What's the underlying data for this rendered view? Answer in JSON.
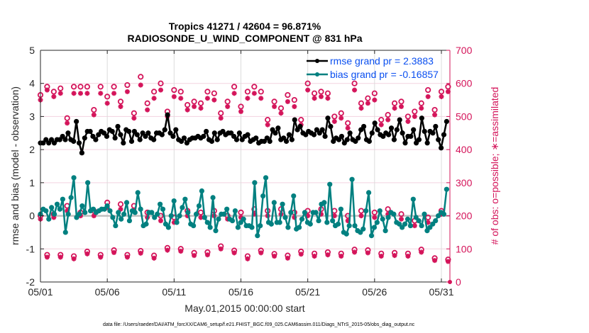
{
  "chart_data": {
    "type": "line",
    "title": "Tropics 41271 / 42604 = 96.871%",
    "subtitle": "RADIOSONDE_U_WIND_COMPONENT @ 831 hPa",
    "xlabel": "May.01,2015 00:00:00 start",
    "ylabel": "rmse and bias (model - observation)",
    "ylabel_right": "# of obs: o=possible; ∗=assimilated",
    "x_tick_labels": [
      "05/01",
      "05/06",
      "05/11",
      "05/16",
      "05/21",
      "05/26",
      "05/31"
    ],
    "x_tick_days": [
      0,
      5,
      10,
      15,
      20,
      25,
      30
    ],
    "xlim_days": [
      0,
      30.6
    ],
    "ylim": [
      -2,
      5
    ],
    "y_ticks": [
      -2,
      -1,
      0,
      1,
      2,
      3,
      4,
      5
    ],
    "ylim_right": [
      0,
      700
    ],
    "y_ticks_right": [
      0,
      100,
      200,
      300,
      400,
      500,
      600,
      700
    ],
    "grid": true,
    "legend_position": "top-right",
    "legend": [
      {
        "label": "rmse grand pr = 2.3883",
        "color": "#000000"
      },
      {
        "label": "bias grand pr = -0.16857",
        "color": "#008080"
      }
    ],
    "footnote": "data file: /Users/raeder/DAI/ATM_forcXX/CAM6_setup/f.e21.FHIST_BGC.f09_025.CAM6assim.011/Diags_NTrS_2015-05/obs_diag_output.nc",
    "sample_interval_days": 0.25,
    "series": [
      {
        "name": "rmse",
        "color": "#000000",
        "values": [
          2.2,
          2.2,
          2.3,
          2.2,
          2.3,
          2.2,
          2.3,
          2.3,
          2.4,
          2.3,
          2.5,
          2.3,
          2.25,
          2.85,
          2.2,
          1.9,
          2.35,
          2.55,
          2.55,
          2.4,
          2.3,
          2.45,
          2.55,
          2.5,
          2.4,
          2.6,
          2.55,
          2.35,
          2.7,
          2.45,
          2.2,
          2.6,
          2.55,
          2.25,
          2.55,
          2.45,
          2.3,
          2.5,
          2.4,
          2.5,
          2.35,
          2.3,
          2.5,
          2.5,
          2.45,
          2.6,
          3.05,
          2.5,
          2.4,
          2.6,
          2.3,
          2.25,
          2.35,
          2.2,
          2.3,
          2.35,
          2.35,
          2.4,
          2.35,
          2.4,
          2.55,
          2.3,
          2.25,
          2.5,
          2.3,
          2.5,
          2.55,
          2.45,
          2.5,
          2.5,
          2.4,
          2.3,
          2.5,
          2.3,
          2.4,
          2.45,
          2.25,
          2.3,
          2.35,
          2.2,
          2.25,
          2.25,
          2.35,
          2.25,
          2.6,
          2.5,
          2.65,
          2.3,
          2.35,
          2.25,
          2.45,
          2.3,
          2.9,
          2.6,
          2.7,
          2.5,
          2.45,
          2.55,
          2.5,
          2.45,
          2.6,
          2.5,
          2.6,
          2.4,
          2.95,
          2.7,
          2.25,
          2.35,
          2.3,
          2.4,
          2.2,
          2.3,
          2.5,
          2.3,
          2.25,
          2.35,
          2.6,
          2.7,
          2.3,
          2.25,
          2.5,
          2.8,
          2.6,
          2.45,
          2.4,
          2.5,
          2.45,
          2.65,
          2.3,
          2.6,
          2.9,
          2.5,
          2.2,
          2.4,
          2.4,
          2.6,
          2.2,
          2.3,
          2.95,
          2.55,
          2.2,
          2.55,
          2.5,
          2.7,
          2.3,
          2.05,
          2.45,
          2.85
        ]
      },
      {
        "name": "bias",
        "color": "#008080",
        "values": [
          0.05,
          0.2,
          0.15,
          -0.1,
          0.25,
          0.05,
          0.35,
          0.2,
          0.5,
          -0.5,
          0.05,
          0.55,
          1.15,
          -0.05,
          0.05,
          0.3,
          0.1,
          1.0,
          0.15,
          0.2,
          0.1,
          0.15,
          0.2,
          0.2,
          0.3,
          0.15,
          -0.05,
          -0.3,
          0.1,
          -0.1,
          0.05,
          0.4,
          -0.15,
          0.15,
          0.1,
          0.7,
          0.2,
          -0.3,
          -0.25,
          0.1,
          0.1,
          -0.05,
          0.05,
          0.35,
          0.2,
          -0.25,
          -0.35,
          0.0,
          0.45,
          -0.2,
          0.0,
          0.25,
          0.5,
          0.1,
          -0.25,
          -0.3,
          0.05,
          0.3,
          0.75,
          -0.05,
          -0.2,
          -0.35,
          0.55,
          -0.45,
          -0.1,
          0.05,
          0.05,
          0.2,
          -0.1,
          -0.15,
          0.15,
          -0.35,
          -0.2,
          -0.1,
          -0.3,
          -0.3,
          -0.35,
          1.0,
          -0.6,
          -0.3,
          0.6,
          1.15,
          -0.2,
          -0.25,
          0.4,
          -0.2,
          -0.2,
          0.35,
          -0.05,
          -0.35,
          0.1,
          0.6,
          -0.4,
          -0.35,
          -0.1,
          0.1,
          -0.2,
          -0.25,
          0.1,
          0.1,
          -0.15,
          0.35,
          0.4,
          -0.2,
          0.95,
          -0.15,
          -0.3,
          -0.25,
          0.2,
          -0.5,
          -0.55,
          -0.3,
          1.1,
          -0.3,
          -0.45,
          -0.5,
          -0.4,
          0.15,
          0.7,
          -0.6,
          -0.35,
          -0.2,
          0.15,
          -0.1,
          -0.45,
          -0.05,
          0.1,
          0.05,
          -0.2,
          -0.25,
          -0.35,
          -0.25,
          -0.1,
          -0.3,
          0.5,
          -0.05,
          -0.15,
          -0.3,
          0.05,
          -0.45,
          -0.35,
          -0.25,
          -0.15,
          0.0,
          0.1,
          0.05,
          0.8
        ]
      }
    ],
    "obs_counts": {
      "possible_color": "#d4145a",
      "assimilated_color": "#d4145a",
      "high_group": {
        "days": [
          0,
          0.5,
          1,
          1.5,
          2,
          2.5,
          3,
          3.5,
          4,
          4.5,
          5,
          5.5,
          6,
          6.5,
          7,
          7.5,
          8,
          8.5,
          9,
          9.5,
          10,
          10.5,
          11,
          11.5,
          12,
          12.5,
          13,
          13.5,
          14,
          14.5,
          15,
          15.5,
          16,
          16.5,
          17,
          17.5,
          18,
          18.5,
          19,
          19.5,
          20,
          20.5,
          21,
          21.5,
          22,
          22.5,
          23,
          23.5,
          24,
          24.5,
          25,
          25.5,
          26,
          26.5,
          27,
          27.5,
          28,
          28.5,
          29,
          29.5,
          30,
          30.5
        ],
        "possible": [
          565,
          590,
          575,
          585,
          495,
          590,
          590,
          590,
          520,
          590,
          560,
          590,
          545,
          595,
          510,
          620,
          540,
          575,
          600,
          515,
          580,
          575,
          535,
          545,
          540,
          575,
          570,
          510,
          545,
          590,
          530,
          575,
          590,
          575,
          490,
          545,
          525,
          565,
          550,
          490,
          600,
          570,
          575,
          570,
          500,
          510,
          480,
          600,
          540,
          555,
          570,
          490,
          505,
          540,
          545,
          500,
          515,
          540,
          580,
          520,
          575,
          590
        ],
        "assimilated": [
          550,
          580,
          560,
          570,
          480,
          570,
          570,
          570,
          505,
          570,
          540,
          570,
          530,
          575,
          495,
          595,
          520,
          555,
          580,
          500,
          560,
          555,
          520,
          530,
          525,
          555,
          550,
          495,
          530,
          570,
          515,
          555,
          570,
          555,
          475,
          530,
          510,
          545,
          530,
          475,
          580,
          555,
          560,
          555,
          485,
          495,
          465,
          580,
          525,
          540,
          550,
          475,
          490,
          525,
          530,
          485,
          500,
          525,
          560,
          505,
          560,
          575
        ]
      },
      "mid_group": {
        "days": [
          0,
          1,
          2,
          3,
          4,
          5,
          6,
          7,
          8,
          9,
          10,
          11,
          12,
          13,
          14,
          15,
          16,
          17,
          18,
          19,
          20,
          21,
          22,
          23,
          24,
          25,
          26,
          27,
          28,
          29,
          30
        ],
        "possible": [
          200,
          205,
          230,
          210,
          215,
          240,
          235,
          230,
          210,
          200,
          195,
          215,
          210,
          215,
          200,
          210,
          220,
          215,
          220,
          210,
          215,
          220,
          215,
          200,
          215,
          210,
          220,
          205,
          185,
          195,
          215
        ],
        "assimilated": [
          190,
          195,
          215,
          200,
          200,
          225,
          220,
          215,
          195,
          185,
          180,
          200,
          195,
          200,
          190,
          195,
          205,
          200,
          205,
          195,
          200,
          205,
          200,
          185,
          200,
          195,
          205,
          190,
          170,
          180,
          205
        ]
      },
      "low_group": {
        "days": [
          0.5,
          1.5,
          2.5,
          3.5,
          4.5,
          5.5,
          6.5,
          7.5,
          8.5,
          9.5,
          10.5,
          11.5,
          12.5,
          13.5,
          14.5,
          15.5,
          16.5,
          17.5,
          18.5,
          19.5,
          20.5,
          21.5,
          22.5,
          23.5,
          24.5,
          25.5,
          26.5,
          27.5,
          28.5,
          29.5,
          30.5
        ],
        "possible": [
          82,
          82,
          78,
          92,
          82,
          96,
          82,
          94,
          80,
          103,
          100,
          88,
          90,
          108,
          95,
          78,
          95,
          85,
          80,
          92,
          86,
          90,
          86,
          98,
          96,
          86,
          88,
          86,
          98,
          72,
          68
        ],
        "assimilated": [
          75,
          75,
          70,
          85,
          75,
          89,
          75,
          87,
          72,
          96,
          93,
          80,
          82,
          100,
          88,
          70,
          88,
          78,
          72,
          84,
          78,
          82,
          78,
          90,
          88,
          78,
          80,
          78,
          90,
          65,
          62
        ]
      }
    }
  }
}
